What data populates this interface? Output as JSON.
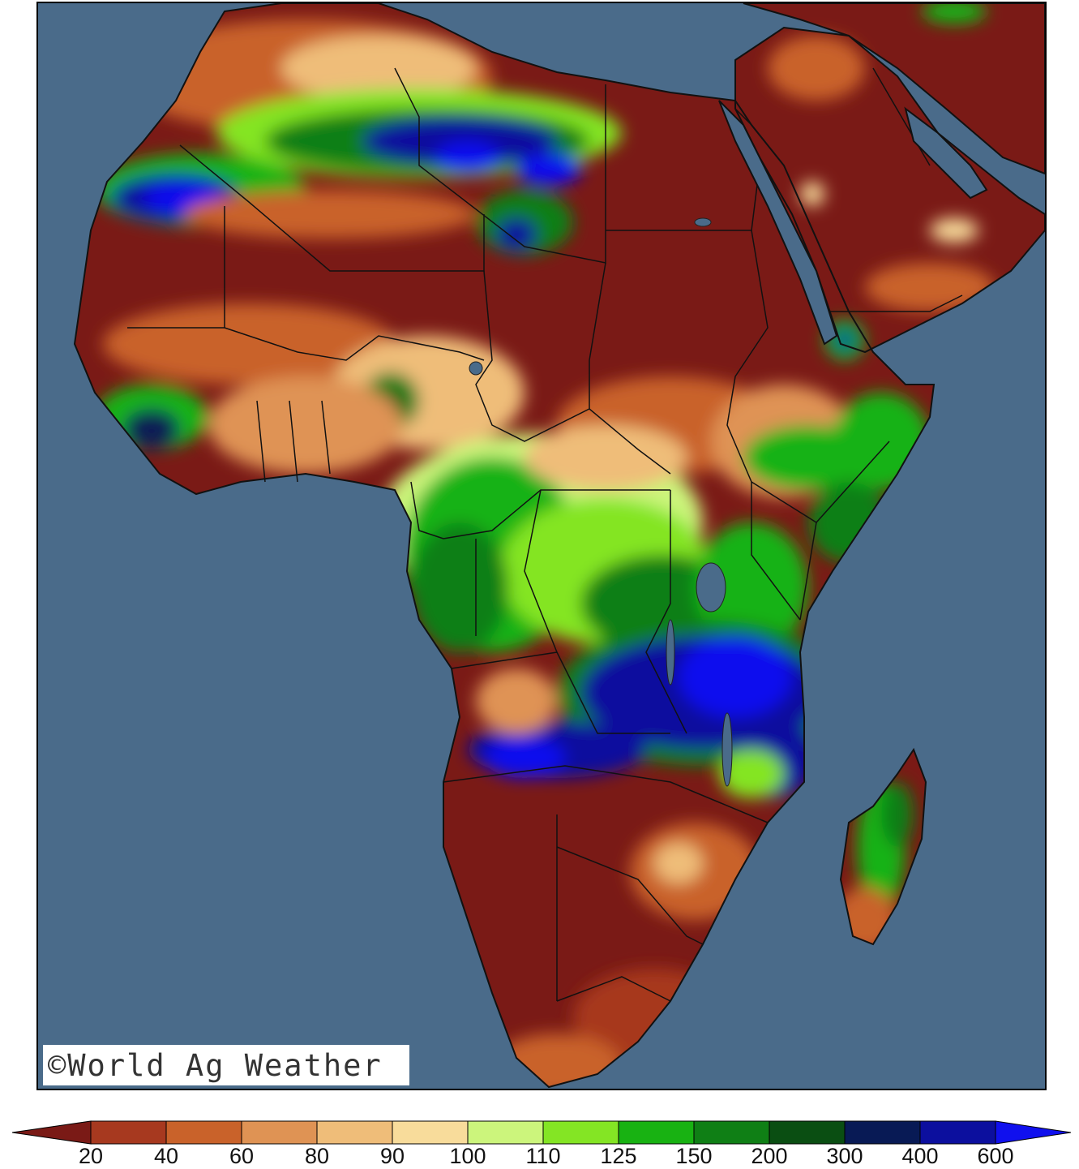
{
  "credit": "©World Ag Weather",
  "legend": {
    "labels": [
      "20",
      "40",
      "60",
      "80",
      "90",
      "100",
      "110",
      "125",
      "150",
      "200",
      "300",
      "400",
      "600"
    ],
    "colors": [
      "#7a1a16",
      "#a7391f",
      "#c9622a",
      "#df9354",
      "#efbd79",
      "#f8dc9b",
      "#ccf57c",
      "#84e524",
      "#18b212",
      "#0f7f15",
      "#0a4e12",
      "#081a55",
      "#0c0f9e",
      "#1010ee"
    ]
  },
  "map": {
    "ocean_color": "#4a6b8a",
    "border_color": "#111111"
  }
}
